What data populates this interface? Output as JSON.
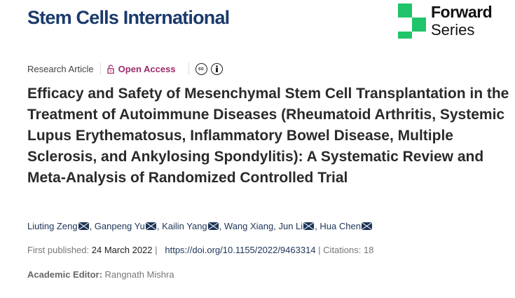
{
  "header": {
    "journal": "Stem Cells International",
    "logo_line1": "Forward",
    "logo_line2": "Series",
    "accent": "#20c46a"
  },
  "meta": {
    "type": "Research Article",
    "access": "Open Access",
    "icons": [
      "lock-icon",
      "cc-icon",
      "attribution-icon"
    ]
  },
  "title": "Efficacy and Safety of Mesenchymal Stem Cell Transplantation in the Treatment of Autoimmune Diseases (Rheumatoid Arthritis, Systemic Lupus Erythematosus, Inflammatory Bowel Disease, Multiple Sclerosis, and Ankylosing Spondylitis): A Systematic Review and Meta-Analysis of Randomized Controlled Trial",
  "authors": [
    {
      "name": "Liuting Zeng",
      "email": true
    },
    {
      "name": "Ganpeng Yu",
      "email": true
    },
    {
      "name": "Kailin Yang",
      "email": true
    },
    {
      "name": "Wang Xiang",
      "email": false
    },
    {
      "name": "Jun Li",
      "email": true
    },
    {
      "name": "Hua Chen",
      "email": true
    }
  ],
  "publication": {
    "label": "First published:",
    "date": "24 March 2022",
    "doi": "https://doi.org/10.1155/2022/9463314",
    "citations": "Citations: 18"
  },
  "editor": {
    "label": "Academic Editor:",
    "name": "Rangnath Mishra"
  }
}
